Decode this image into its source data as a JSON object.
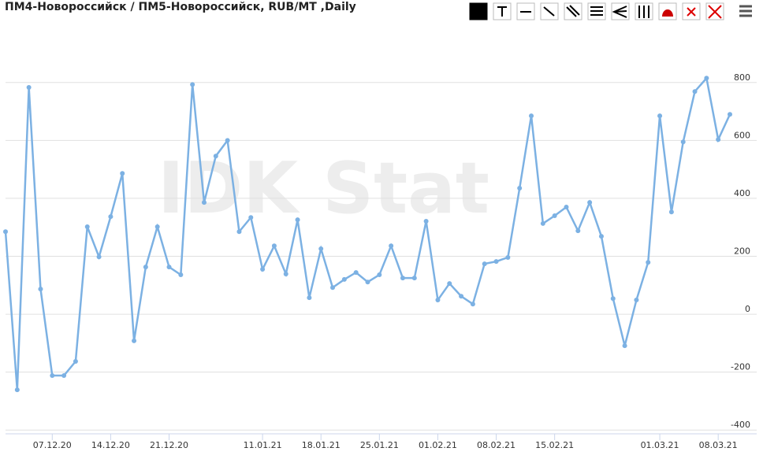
{
  "chart_data": {
    "type": "line",
    "title": "ПМ4-Новороссийск / ПМ5-Новороссийск, RUB/MT ,Daily",
    "watermark": "IDK Stat",
    "categories": [
      null,
      null,
      null,
      null,
      "07.12.20",
      null,
      null,
      null,
      null,
      "14.12.20",
      null,
      null,
      null,
      null,
      "21.12.20",
      null,
      null,
      null,
      null,
      null,
      null,
      null,
      "11.01.21",
      null,
      null,
      null,
      null,
      "18.01.21",
      null,
      null,
      null,
      null,
      "25.01.21",
      null,
      null,
      null,
      null,
      "01.02.21",
      null,
      null,
      null,
      null,
      "08.02.21",
      null,
      null,
      null,
      null,
      "15.02.21",
      null,
      null,
      null,
      null,
      null,
      null,
      null,
      null,
      "01.03.21",
      null,
      null,
      null,
      null,
      "08.03.21",
      null
    ],
    "series": [
      {
        "name": "ПМ4-Новороссийск / ПМ5-Новороссийск",
        "color": "#7cb1e3",
        "values": [
          285,
          -261,
          783,
          87,
          -212,
          -212,
          -163,
          302,
          198,
          337,
          486,
          -92,
          163,
          302,
          163,
          136,
          793,
          386,
          546,
          600,
          285,
          334,
          155,
          236,
          139,
          326,
          57,
          226,
          92,
          120,
          144,
          111,
          136,
          236,
          125,
          125,
          321,
          49,
          106,
          62,
          35,
          174,
          182,
          196,
          435,
          685,
          313,
          340,
          370,
          288,
          386,
          269,
          54,
          -109,
          49,
          179,
          685,
          353,
          595,
          769,
          815,
          603,
          690
        ]
      }
    ],
    "ylim": [
      -413,
      987
    ],
    "yticks": [
      -400,
      -200,
      0,
      200,
      400,
      600,
      800
    ],
    "grid": true
  }
}
